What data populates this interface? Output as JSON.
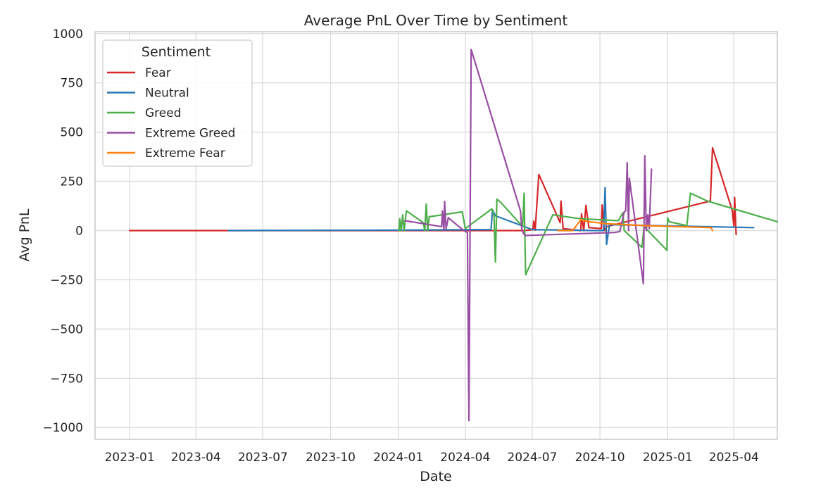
{
  "chart_data": {
    "type": "line",
    "title": "Average PnL Over Time by Sentiment",
    "xlabel": "Date",
    "ylabel": "Avg PnL",
    "xlim": [
      "2022-11-15",
      "2025-05-30"
    ],
    "ylim": [
      -1060,
      1010
    ],
    "x_ticks": [
      "2023-01",
      "2023-04",
      "2023-07",
      "2023-10",
      "2024-01",
      "2024-04",
      "2024-07",
      "2024-10",
      "2025-01",
      "2025-04"
    ],
    "y_ticks": [
      1000,
      750,
      500,
      250,
      0,
      -250,
      -500,
      -750,
      -1000
    ],
    "y_tick_labels": [
      "1000",
      "750",
      "500",
      "250",
      "0",
      "−250",
      "−500",
      "−750",
      "−1000"
    ],
    "grid": true,
    "legend": {
      "title": "Sentiment",
      "position": "top-left"
    },
    "series": [
      {
        "name": "Fear",
        "color": "#d62728",
        "points": [
          [
            "2023-01-01",
            0
          ],
          [
            "2023-05-15",
            0
          ],
          [
            "2024-06-20",
            0
          ],
          [
            "2024-07-02",
            5
          ],
          [
            "2024-07-03",
            48
          ],
          [
            "2024-07-05",
            2
          ],
          [
            "2024-07-10",
            285
          ],
          [
            "2024-08-08",
            40
          ],
          [
            "2024-08-09",
            150
          ],
          [
            "2024-08-12",
            10
          ],
          [
            "2024-09-05",
            0
          ],
          [
            "2024-09-06",
            85
          ],
          [
            "2024-09-09",
            0
          ],
          [
            "2024-09-12",
            128
          ],
          [
            "2024-09-16",
            15
          ],
          [
            "2024-10-03",
            10
          ],
          [
            "2024-10-04",
            130
          ],
          [
            "2024-10-07",
            0
          ],
          [
            "2024-10-10",
            20
          ],
          [
            "2025-02-28",
            150
          ],
          [
            "2025-03-03",
            420
          ],
          [
            "2025-03-30",
            100
          ],
          [
            "2025-04-01",
            20
          ],
          [
            "2025-04-02",
            168
          ],
          [
            "2025-04-04",
            -20
          ]
        ]
      },
      {
        "name": "Neutral",
        "color": "#2878b5",
        "points": [
          [
            "2023-05-15",
            0
          ],
          [
            "2024-01-01",
            2
          ],
          [
            "2024-05-06",
            5
          ],
          [
            "2024-05-08",
            105
          ],
          [
            "2024-05-12",
            75
          ],
          [
            "2024-07-01",
            5
          ],
          [
            "2024-09-25",
            0
          ],
          [
            "2024-10-06",
            0
          ],
          [
            "2024-10-08",
            218
          ],
          [
            "2024-10-10",
            -70
          ],
          [
            "2024-10-14",
            30
          ],
          [
            "2025-04-28",
            15
          ]
        ]
      },
      {
        "name": "Greed",
        "color": "#4daf4a",
        "points": [
          [
            "2024-01-02",
            0
          ],
          [
            "2024-01-03",
            60
          ],
          [
            "2024-01-05",
            0
          ],
          [
            "2024-01-07",
            80
          ],
          [
            "2024-01-09",
            0
          ],
          [
            "2024-01-12",
            100
          ],
          [
            "2024-02-04",
            40
          ],
          [
            "2024-02-06",
            0
          ],
          [
            "2024-02-08",
            135
          ],
          [
            "2024-02-10",
            0
          ],
          [
            "2024-02-12",
            70
          ],
          [
            "2024-03-28",
            95
          ],
          [
            "2024-04-01",
            10
          ],
          [
            "2024-05-07",
            110
          ],
          [
            "2024-05-10",
            80
          ],
          [
            "2024-05-12",
            -160
          ],
          [
            "2024-05-14",
            160
          ],
          [
            "2024-05-20",
            140
          ],
          [
            "2024-06-18",
            20
          ],
          [
            "2024-06-20",
            190
          ],
          [
            "2024-06-22",
            -225
          ],
          [
            "2024-07-29",
            80
          ],
          [
            "2024-09-04",
            60
          ],
          [
            "2024-10-26",
            50
          ],
          [
            "2024-11-01",
            90
          ],
          [
            "2024-11-03",
            0
          ],
          [
            "2024-11-27",
            -85
          ],
          [
            "2024-11-30",
            20
          ],
          [
            "2024-12-31",
            -100
          ],
          [
            "2025-01-01",
            65
          ],
          [
            "2025-01-03",
            45
          ],
          [
            "2025-01-27",
            25
          ],
          [
            "2025-02-01",
            190
          ],
          [
            "2025-02-24",
            150
          ],
          [
            "2025-05-30",
            45
          ]
        ]
      },
      {
        "name": "Extreme Greed",
        "color": "#984ea3",
        "points": [
          [
            "2024-01-10",
            50
          ],
          [
            "2024-02-29",
            20
          ],
          [
            "2024-03-01",
            100
          ],
          [
            "2024-03-03",
            0
          ],
          [
            "2024-03-04",
            148
          ],
          [
            "2024-03-06",
            10
          ],
          [
            "2024-03-09",
            65
          ],
          [
            "2024-03-30",
            0
          ],
          [
            "2024-04-04",
            -10
          ],
          [
            "2024-04-06",
            -965
          ],
          [
            "2024-04-09",
            920
          ],
          [
            "2024-06-15",
            100
          ],
          [
            "2024-06-17",
            0
          ],
          [
            "2024-06-21",
            -25
          ],
          [
            "2024-10-20",
            -10
          ],
          [
            "2024-10-28",
            -5
          ],
          [
            "2024-11-03",
            95
          ],
          [
            "2024-11-05",
            100
          ],
          [
            "2024-11-07",
            345
          ],
          [
            "2024-11-09",
            0
          ],
          [
            "2024-11-10",
            265
          ],
          [
            "2024-11-29",
            -270
          ],
          [
            "2024-12-01",
            380
          ],
          [
            "2024-12-03",
            0
          ],
          [
            "2024-12-05",
            80
          ],
          [
            "2024-12-07",
            10
          ],
          [
            "2024-12-10",
            312
          ]
        ]
      },
      {
        "name": "Extreme Fear",
        "color": "#ff7f0e",
        "points": [
          [
            "2024-08-05",
            0
          ],
          [
            "2024-08-25",
            0
          ],
          [
            "2024-09-05",
            55
          ],
          [
            "2024-09-15",
            45
          ],
          [
            "2024-10-10",
            35
          ],
          [
            "2024-12-01",
            25
          ],
          [
            "2025-03-01",
            15
          ],
          [
            "2025-03-03",
            0
          ]
        ]
      }
    ]
  }
}
